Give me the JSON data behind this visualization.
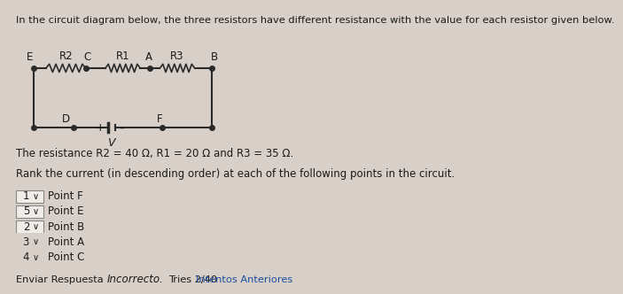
{
  "bg_color": "#d8d0c8",
  "title_text": "In the circuit diagram below, the three resistors have different resistance with the value for each resistor given below.",
  "resistance_text": "The resistance R2 = 40 Ω, R1 = 20 Ω and R3 = 35 Ω.",
  "rank_text": "Rank the current (in descending order) at each of the following points in the circuit.",
  "dropdown_items": [
    {
      "value": "1",
      "label": "Point F"
    },
    {
      "value": "5",
      "label": "Point E"
    },
    {
      "value": "2",
      "label": "Point B"
    },
    {
      "value": "3",
      "label": "Point A"
    },
    {
      "value": "4",
      "label": "Point C"
    }
  ],
  "button_text": "Enviar Respuesta",
  "incorrect_text": "Incorrecto.",
  "tries_text": "Tries 2/40",
  "intentos_text": "Intentos Anteriores",
  "text_color": "#1a1a1a",
  "line_color": "#2a2a2a",
  "link_color": "#1a4fa0",
  "font_family": "DejaVu Sans"
}
